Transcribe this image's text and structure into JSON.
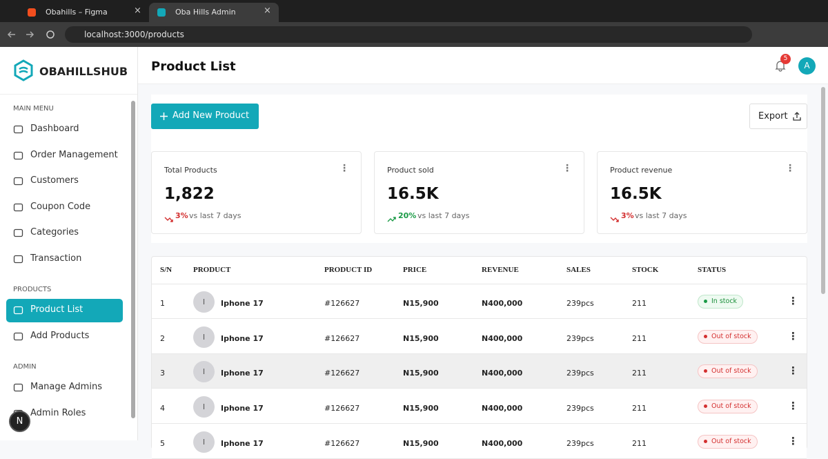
{
  "browser": {
    "tabs": [
      {
        "title": "Obahills – Figma",
        "active": false
      },
      {
        "title": "Oba Hills Admin",
        "active": true
      }
    ],
    "url": "localhost:3000/products"
  },
  "sidebar": {
    "brand": "OBAHILLSHUB",
    "sections": [
      {
        "heading": "MAIN MENU",
        "items": [
          {
            "label": "Dashboard"
          },
          {
            "label": "Order Management"
          },
          {
            "label": "Customers"
          },
          {
            "label": "Coupon Code"
          },
          {
            "label": "Categories"
          },
          {
            "label": "Transaction"
          }
        ]
      },
      {
        "heading": "PRODUCTS",
        "items": [
          {
            "label": "Product List",
            "active": true
          },
          {
            "label": "Add Products"
          }
        ]
      },
      {
        "heading": "ADMIN",
        "items": [
          {
            "label": "Manage Admins"
          },
          {
            "label": "Admin Roles"
          }
        ]
      }
    ],
    "floating_avatar": "N"
  },
  "header": {
    "title": "Product List",
    "notifications": "5",
    "avatar": "A"
  },
  "actions": {
    "add": "Add New Product",
    "export": "Export"
  },
  "stats": [
    {
      "label": "Total Products",
      "value": "1,822",
      "change": "3%",
      "trend": "down",
      "note": "vs last 7 days"
    },
    {
      "label": "Product sold",
      "value": "16.5K",
      "change": "20%",
      "trend": "up",
      "note": "vs last 7 days"
    },
    {
      "label": "Product revenue",
      "value": "16.5K",
      "change": "3%",
      "trend": "down",
      "note": "vs last 7 days"
    }
  ],
  "table": {
    "columns": [
      "S/N",
      "PRODUCT",
      "PRODUCT ID",
      "PRICE",
      "REVENUE",
      "SALES",
      "STOCK",
      "STATUS"
    ],
    "rows": [
      {
        "sn": "1",
        "initial": "I",
        "product": "Iphone 17",
        "id": "#126627",
        "price": "N15,900",
        "revenue": "N400,000",
        "sales": "239pcs",
        "stock": "211",
        "status": {
          "label": "In stock",
          "tone": "success"
        }
      },
      {
        "sn": "2",
        "initial": "I",
        "product": "Iphone 17",
        "id": "#126627",
        "price": "N15,900",
        "revenue": "N400,000",
        "sales": "239pcs",
        "stock": "211",
        "status": {
          "label": "Out of stock",
          "tone": "danger"
        }
      },
      {
        "sn": "3",
        "initial": "I",
        "product": "Iphone 17",
        "id": "#126627",
        "price": "N15,900",
        "revenue": "N400,000",
        "sales": "239pcs",
        "stock": "211",
        "status": {
          "label": "Out of stock",
          "tone": "danger"
        },
        "highlighted": true
      },
      {
        "sn": "4",
        "initial": "I",
        "product": "Iphone 17",
        "id": "#126627",
        "price": "N15,900",
        "revenue": "N400,000",
        "sales": "239pcs",
        "stock": "211",
        "status": {
          "label": "Out of stock",
          "tone": "danger"
        }
      },
      {
        "sn": "5",
        "initial": "I",
        "product": "Iphone 17",
        "id": "#126627",
        "price": "N15,900",
        "revenue": "N400,000",
        "sales": "239pcs",
        "stock": "211",
        "status": {
          "label": "Out of stock",
          "tone": "danger"
        }
      }
    ]
  }
}
